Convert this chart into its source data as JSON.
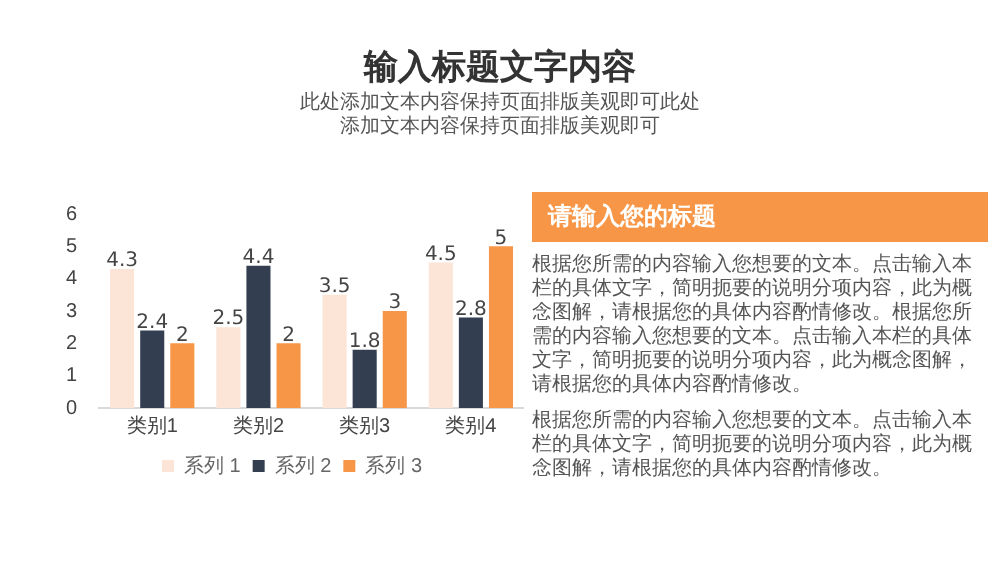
{
  "chart_data": {
    "type": "bar",
    "title": "输入标题文字内容",
    "subtitle": "此处添加文本内容保持页面排版美观即可此处添加文本内容保持页面排版美观即可",
    "categories": [
      "类别1",
      "类别2",
      "类别3",
      "类别4"
    ],
    "series": [
      {
        "name": "系列 1",
        "color": "#fce4d6",
        "values": [
          4.3,
          2.5,
          3.5,
          4.5
        ]
      },
      {
        "name": "系列 2",
        "color": "#333f50",
        "values": [
          2.4,
          4.4,
          1.8,
          2.8
        ]
      },
      {
        "name": "系列 3",
        "color": "#f79646",
        "values": [
          2,
          2,
          3,
          5
        ]
      }
    ],
    "ylim": [
      0,
      6
    ],
    "yticks": [
      0,
      1,
      2,
      3,
      4,
      5,
      6
    ],
    "grid": false,
    "legend": "bottom",
    "data_labels": true,
    "annotations": [
      "请输入您的标题",
      "根据您所需的内容输入您想要的文本。点击输入本栏的具体文字，简明扼要的说明分项内容，此为概念图解，请根据您的具体内容酌情修改。根据您所需的内容输入您想要的文本。点击输入本栏的具体文字，简明扼要的说明分项内容，此为概念图解，请根据您的具体内容酌情修改。",
      "根据您所需的内容输入您想要的文本。点击输入本栏的具体文字，简明扼要的说明分项内容，此为概念图解，请根据您的具体内容酌情修改。"
    ]
  }
}
